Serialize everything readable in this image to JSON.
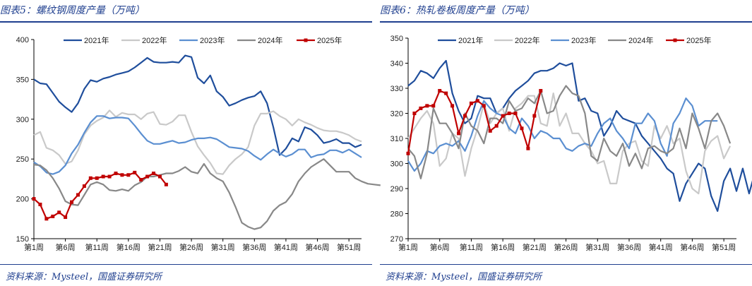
{
  "chart_data": [
    {
      "type": "line",
      "title": "图表5：螺纹钢周度产量（万吨）",
      "source": "资料来源：Mysteel，国盛证券研究所",
      "xlabel": "",
      "ylabel": "",
      "ylim": [
        150,
        400
      ],
      "yticks": [
        150,
        200,
        250,
        300,
        350,
        400
      ],
      "xlim": [
        1,
        53
      ],
      "xtick_weeks": [
        1,
        6,
        11,
        16,
        21,
        26,
        31,
        36,
        41,
        46,
        51
      ],
      "xtick_labels": [
        "第1周",
        "第6周",
        "第11周",
        "第16周",
        "第21周",
        "第26周",
        "第31周",
        "第36周",
        "第41周",
        "第46周",
        "第51周"
      ],
      "legend_position": "top",
      "series": [
        {
          "name": "2021年",
          "color": "#1f4e9c",
          "markers": false,
          "values": [
            350,
            345,
            344,
            333,
            322,
            315,
            309,
            320,
            338,
            349,
            347,
            351,
            353,
            356,
            358,
            360,
            365,
            371,
            377,
            372,
            371,
            371,
            372,
            371,
            380,
            378,
            352,
            345,
            355,
            335,
            328,
            317,
            320,
            324,
            327,
            329,
            335,
            320,
            290,
            255,
            263,
            276,
            272,
            290,
            287,
            280,
            270,
            272,
            275,
            270,
            270,
            265,
            268
          ]
        },
        {
          "name": "2022年",
          "color": "#c9c9c9",
          "markers": false,
          "values": [
            280,
            284,
            264,
            261,
            255,
            244,
            247,
            261,
            281,
            292,
            298,
            302,
            311,
            303,
            308,
            306,
            306,
            300,
            307,
            309,
            294,
            293,
            297,
            305,
            305,
            284,
            266,
            255,
            245,
            232,
            231,
            242,
            250,
            256,
            265,
            292,
            307,
            307,
            310,
            304,
            300,
            292,
            300,
            296,
            293,
            289,
            286,
            285,
            285,
            283,
            280,
            275,
            272
          ]
        },
        {
          "name": "2023年",
          "color": "#5b8fd1",
          "markers": false,
          "values": [
            246,
            241,
            233,
            231,
            234,
            242,
            257,
            268,
            283,
            296,
            304,
            304,
            301,
            302,
            302,
            301,
            292,
            282,
            273,
            269,
            269,
            271,
            273,
            270,
            271,
            274,
            276,
            276,
            277,
            275,
            270,
            265,
            264,
            263,
            260,
            254,
            249,
            256,
            262,
            257,
            253,
            256,
            262,
            262,
            252,
            255,
            256,
            261,
            261,
            258,
            262,
            257,
            252
          ]
        },
        {
          "name": "2024年",
          "color": "#888888",
          "markers": false,
          "values": [
            243,
            242,
            236,
            226,
            213,
            197,
            193,
            192,
            205,
            218,
            221,
            218,
            211,
            210,
            212,
            210,
            217,
            221,
            228,
            228,
            230,
            232,
            232,
            235,
            240,
            234,
            232,
            244,
            232,
            226,
            222,
            208,
            190,
            170,
            165,
            162,
            164,
            172,
            185,
            192,
            196,
            206,
            222,
            232,
            240,
            245,
            250,
            242,
            234,
            234,
            234,
            226,
            222,
            219,
            218,
            217
          ]
        },
        {
          "name": "2025年",
          "color": "#c00000",
          "markers": true,
          "values": [
            200,
            193,
            175,
            178,
            183,
            177,
            196,
            205,
            216,
            226,
            226,
            228,
            228,
            232,
            230,
            230,
            233,
            224,
            228,
            232,
            228,
            218
          ]
        }
      ]
    },
    {
      "type": "line",
      "title": "图表6：热轧卷板周度产量（万吨）",
      "source": "资料来源：Mysteel，国盛证券研究所",
      "xlabel": "",
      "ylabel": "",
      "ylim": [
        270,
        350
      ],
      "yticks": [
        270,
        280,
        290,
        300,
        310,
        320,
        330,
        340,
        350
      ],
      "xlim": [
        1,
        53
      ],
      "xtick_weeks": [
        1,
        6,
        11,
        16,
        21,
        26,
        31,
        36,
        41,
        46,
        51
      ],
      "xtick_labels": [
        "第1周",
        "第6周",
        "第11周",
        "第16周",
        "第21周",
        "第26周",
        "第31周",
        "第36周",
        "第41周",
        "第46周",
        "第51周"
      ],
      "legend_position": "top",
      "series": [
        {
          "name": "2021年",
          "color": "#1f4e9c",
          "markers": false,
          "values": [
            331,
            333,
            337,
            336,
            334,
            338,
            341,
            328,
            321,
            316,
            318,
            327,
            326,
            326,
            320,
            322,
            326,
            329,
            331,
            333,
            336,
            337,
            337,
            338,
            340,
            339,
            340,
            325,
            326,
            321,
            320,
            311,
            315,
            321,
            318,
            317,
            316,
            311,
            308,
            305,
            302,
            298,
            296,
            285,
            292,
            296,
            300,
            298,
            287,
            281,
            293,
            298,
            289,
            298,
            288,
            297
          ]
        },
        {
          "name": "2022年",
          "color": "#c9c9c9",
          "markers": false,
          "values": [
            310,
            314,
            318,
            321,
            316,
            299,
            302,
            312,
            310,
            295,
            306,
            314,
            324,
            316,
            320,
            322,
            313,
            322,
            324,
            327,
            327,
            316,
            315,
            328,
            315,
            320,
            312,
            312,
            308,
            305,
            300,
            301,
            292,
            292,
            305,
            308,
            309,
            301,
            299,
            315,
            310,
            315,
            308,
            310,
            297,
            290,
            288,
            305,
            309,
            311,
            302,
            307
          ]
        },
        {
          "name": "2023年",
          "color": "#5b8fd1",
          "markers": false,
          "values": [
            301,
            297,
            300,
            305,
            304,
            307,
            308,
            307,
            309,
            305,
            311,
            319,
            325,
            322,
            320,
            319,
            314,
            312,
            318,
            315,
            310,
            313,
            312,
            310,
            310,
            306,
            305,
            307,
            308,
            307,
            312,
            316,
            318,
            313,
            310,
            306,
            316,
            316,
            320,
            317,
            308,
            303,
            316,
            320,
            326,
            323,
            315,
            317,
            317,
            317
          ]
        },
        {
          "name": "2024年",
          "color": "#888888",
          "markers": false,
          "values": [
            306,
            303,
            294,
            304,
            322,
            316,
            316,
            312,
            306,
            320,
            315,
            313,
            308,
            318,
            318,
            316,
            325,
            321,
            322,
            326,
            324,
            329,
            320,
            321,
            327,
            331,
            328,
            327,
            320,
            303,
            301,
            310,
            305,
            303,
            308,
            299,
            304,
            298,
            306,
            307,
            305,
            304,
            306,
            314,
            306,
            320,
            314,
            306,
            317,
            320,
            315,
            308
          ]
        },
        {
          "name": "2025年",
          "color": "#c00000",
          "markers": true,
          "values": [
            304,
            320,
            322,
            323,
            323,
            329,
            328,
            323,
            312,
            319,
            324,
            325,
            323,
            313,
            315,
            319,
            320,
            320,
            314,
            306,
            319,
            329
          ]
        }
      ]
    }
  ]
}
